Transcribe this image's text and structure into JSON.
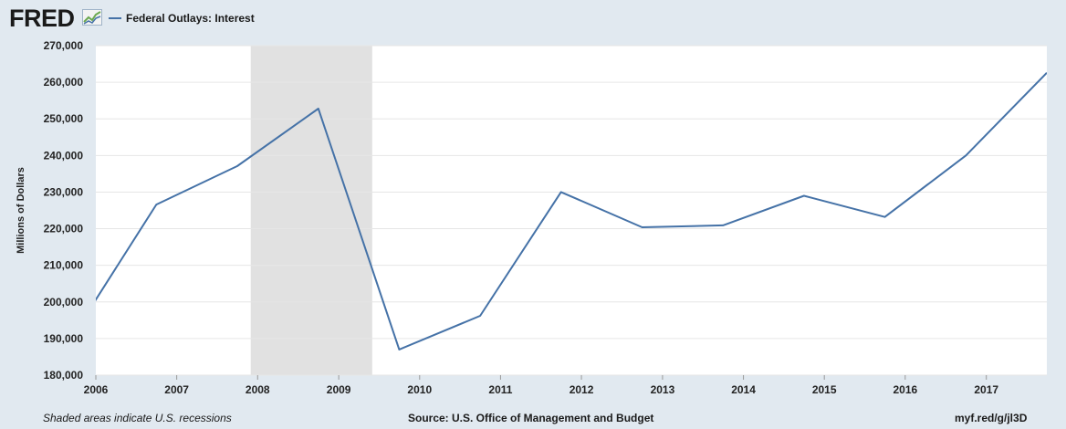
{
  "header": {
    "logo": "FRED",
    "logo_icon": "line-chart-icon",
    "legend_label": "Federal Outlays: Interest"
  },
  "footer": {
    "note": "Shaded areas indicate U.S. recessions",
    "source": "Source: U.S. Office of Management and Budget",
    "link": "myf.red/g/jl3D"
  },
  "colors": {
    "background": "#e1e9f0",
    "plot_background": "#ffffff",
    "series": "#4572a7",
    "recession": "#e1e1e1",
    "grid": "#e6e6e6"
  },
  "chart_data": {
    "type": "line",
    "title": "",
    "xlabel": "",
    "ylabel": "Millions of Dollars",
    "ylim": [
      180000,
      270000
    ],
    "yticks": [
      180000,
      190000,
      200000,
      210000,
      220000,
      230000,
      240000,
      250000,
      260000,
      270000
    ],
    "ytick_labels": [
      "180,000",
      "190,000",
      "200,000",
      "210,000",
      "220,000",
      "230,000",
      "240,000",
      "250,000",
      "260,000",
      "270,000"
    ],
    "xlim": [
      "2006-01-01",
      "2017-10-01"
    ],
    "xticks": [
      "2006-01-01",
      "2007-01-01",
      "2008-01-01",
      "2009-01-01",
      "2010-01-01",
      "2011-01-01",
      "2012-01-01",
      "2013-01-01",
      "2014-01-01",
      "2015-01-01",
      "2016-01-01",
      "2017-01-01"
    ],
    "xtick_labels": [
      "2006",
      "2007",
      "2008",
      "2009",
      "2010",
      "2011",
      "2012",
      "2013",
      "2014",
      "2015",
      "2016",
      "2017"
    ],
    "grid": true,
    "recessions": [
      {
        "start": "2007-12-01",
        "end": "2009-06-01"
      }
    ],
    "series": [
      {
        "name": "Federal Outlays: Interest",
        "x": [
          "2005-10-01",
          "2006-10-01",
          "2007-10-01",
          "2008-10-01",
          "2009-10-01",
          "2010-10-01",
          "2011-10-01",
          "2012-10-01",
          "2013-10-01",
          "2014-10-01",
          "2015-10-01",
          "2016-10-01",
          "2017-10-01"
        ],
        "values": [
          191900,
          226600,
          237100,
          252800,
          187000,
          196200,
          230000,
          220400,
          220900,
          229000,
          223200,
          240000,
          262600
        ]
      }
    ]
  }
}
